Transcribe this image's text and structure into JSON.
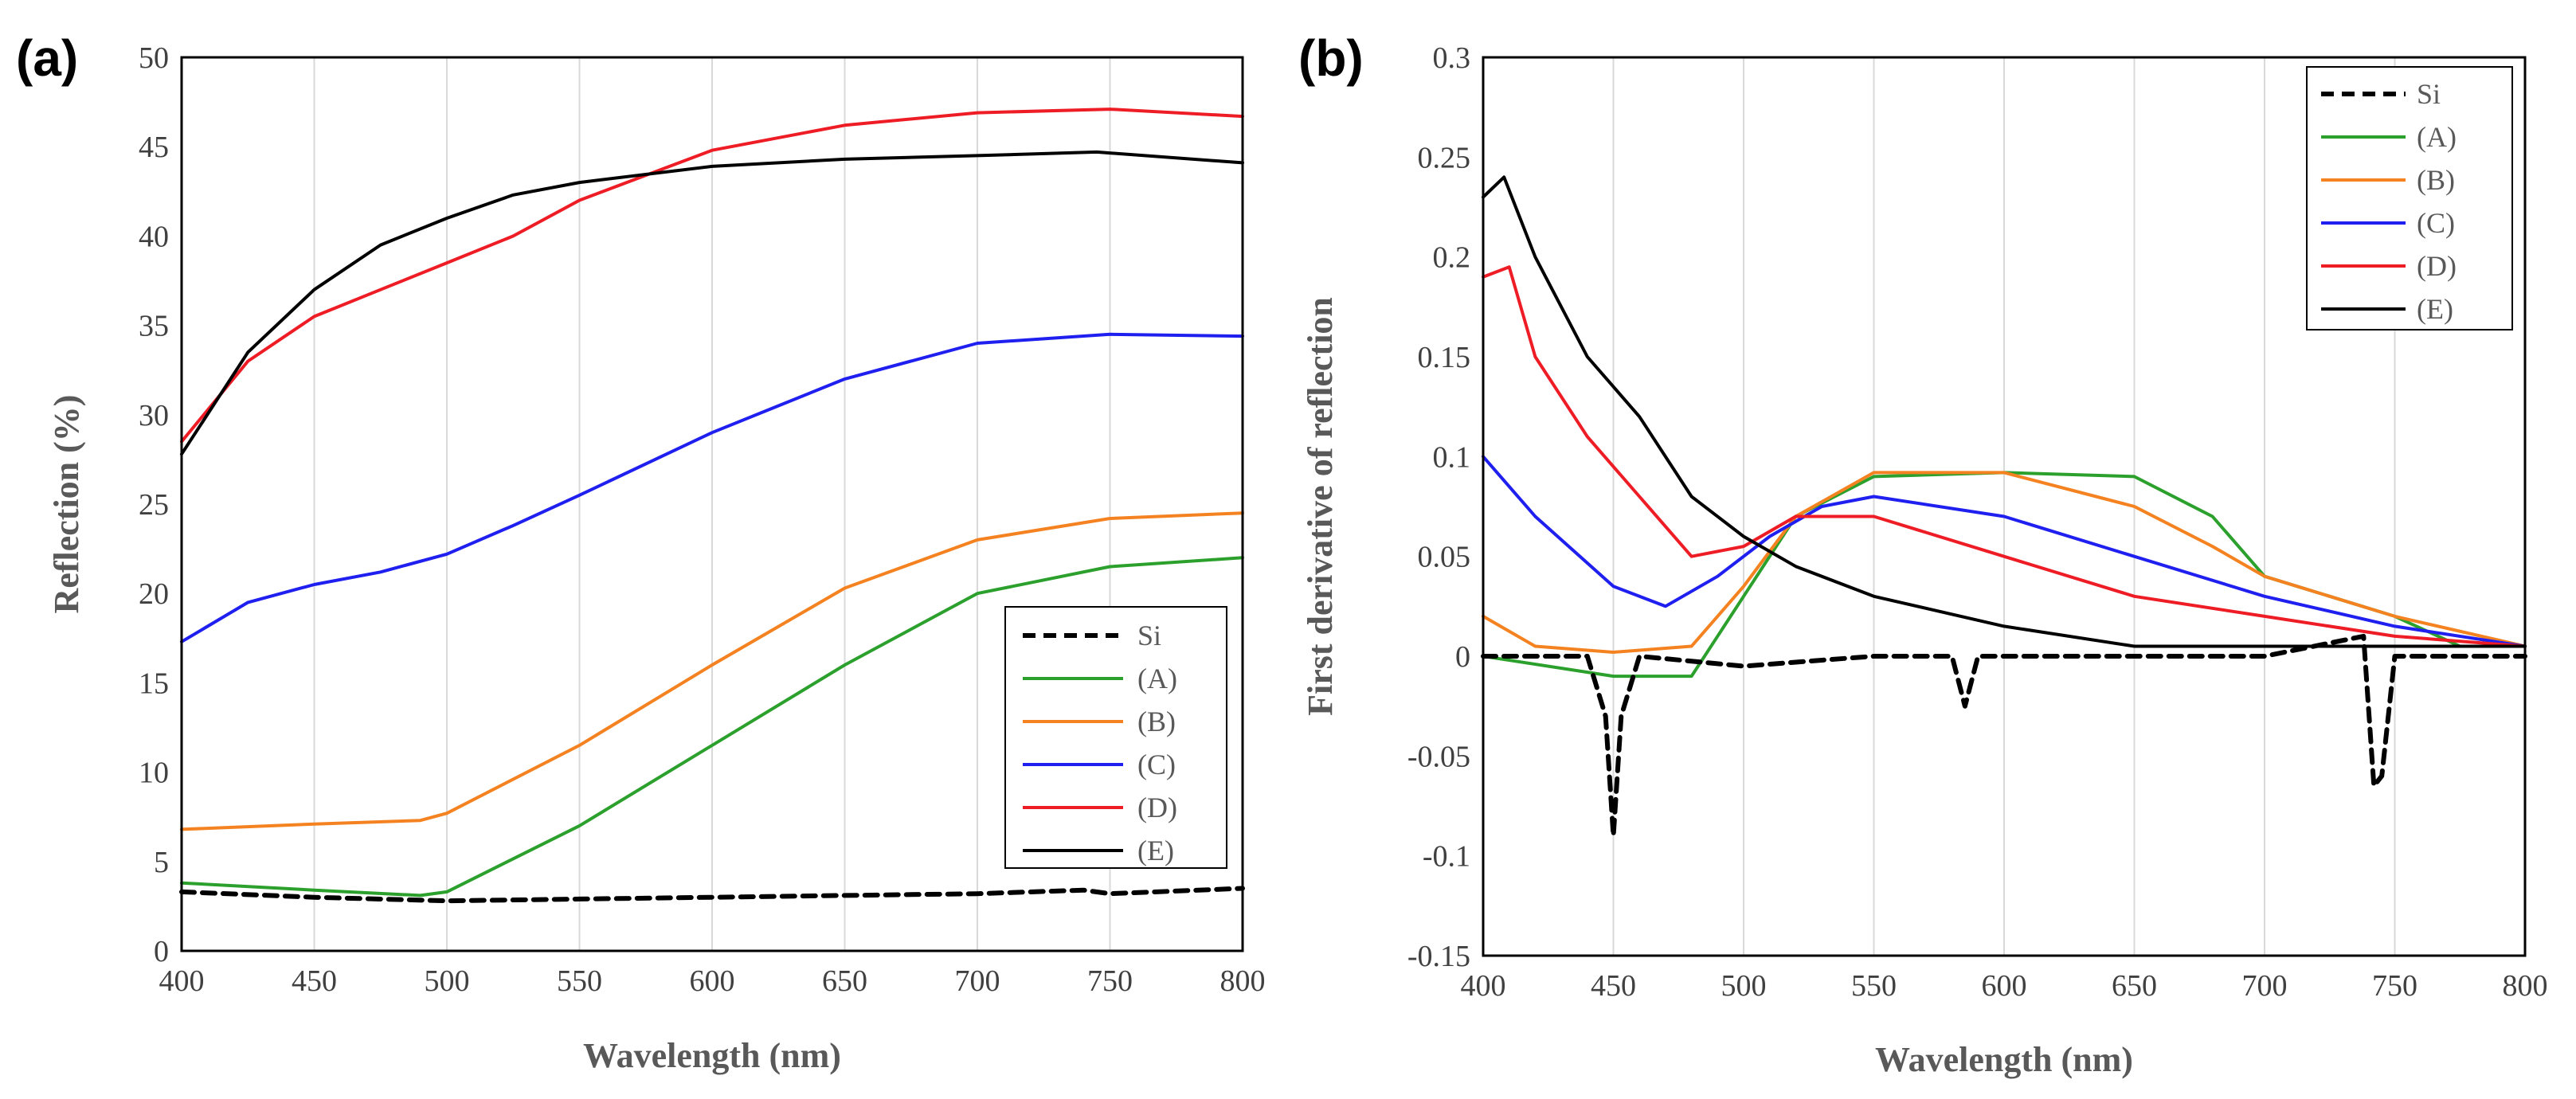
{
  "chart_data": [
    {
      "panel": "(a)",
      "type": "line",
      "xlabel": "Wavelength (nm)",
      "ylabel": "Reflection (%)",
      "xlim": [
        400,
        800
      ],
      "ylim": [
        0,
        50
      ],
      "xticks": [
        400,
        450,
        500,
        550,
        600,
        650,
        700,
        750,
        800
      ],
      "yticks": [
        0,
        5,
        10,
        15,
        20,
        25,
        30,
        35,
        40,
        45,
        50
      ],
      "grid": "vertical",
      "legend_position": "bottom-right",
      "series": [
        {
          "name": "Si",
          "color": "#000000",
          "dash": true,
          "x": [
            400,
            450,
            500,
            550,
            600,
            650,
            700,
            740,
            750,
            800
          ],
          "y": [
            3.3,
            3.0,
            2.8,
            2.9,
            3.0,
            3.1,
            3.2,
            3.4,
            3.2,
            3.5
          ]
        },
        {
          "name": "(A)",
          "color": "#2ca02c",
          "dash": false,
          "x": [
            400,
            450,
            490,
            500,
            550,
            600,
            650,
            700,
            750,
            800
          ],
          "y": [
            3.8,
            3.4,
            3.1,
            3.3,
            7.0,
            11.5,
            16.0,
            20.0,
            21.5,
            22.0
          ]
        },
        {
          "name": "(B)",
          "color": "#f58220",
          "dash": false,
          "x": [
            400,
            450,
            490,
            500,
            550,
            600,
            650,
            700,
            750,
            800
          ],
          "y": [
            6.8,
            7.1,
            7.3,
            7.7,
            11.5,
            16.0,
            20.3,
            23.0,
            24.2,
            24.5
          ]
        },
        {
          "name": "(C)",
          "color": "#1f1ff0",
          "dash": false,
          "x": [
            400,
            425,
            450,
            475,
            500,
            525,
            550,
            600,
            650,
            700,
            750,
            800
          ],
          "y": [
            17.3,
            19.5,
            20.5,
            21.2,
            22.2,
            23.8,
            25.5,
            29.0,
            32.0,
            34.0,
            34.5,
            34.4
          ]
        },
        {
          "name": "(D)",
          "color": "#ee1c25",
          "dash": false,
          "x": [
            400,
            425,
            450,
            475,
            500,
            525,
            550,
            600,
            650,
            700,
            750,
            800
          ],
          "y": [
            28.5,
            33.0,
            35.5,
            37.0,
            38.5,
            40.0,
            42.0,
            44.8,
            46.2,
            46.9,
            47.1,
            46.7
          ]
        },
        {
          "name": "(E)",
          "color": "#000000",
          "dash": false,
          "x": [
            400,
            425,
            450,
            475,
            500,
            525,
            550,
            600,
            650,
            700,
            745,
            800
          ],
          "y": [
            27.8,
            33.5,
            37.0,
            39.5,
            41.0,
            42.3,
            43.0,
            43.9,
            44.3,
            44.5,
            44.7,
            44.1
          ]
        }
      ]
    },
    {
      "panel": "(b)",
      "type": "line",
      "xlabel": "Wavelength (nm)",
      "ylabel": "First derivative of reflection",
      "xlim": [
        400,
        800
      ],
      "ylim": [
        -0.15,
        0.3
      ],
      "xticks": [
        400,
        450,
        500,
        550,
        600,
        650,
        700,
        750,
        800
      ],
      "yticks": [
        -0.15,
        -0.1,
        -0.05,
        0,
        0.05,
        0.1,
        0.15,
        0.2,
        0.25,
        0.3
      ],
      "grid": "vertical",
      "legend_position": "top-right",
      "series": [
        {
          "name": "Si",
          "color": "#000000",
          "dash": true,
          "x": [
            400,
            440,
            447,
            450,
            453,
            460,
            500,
            550,
            580,
            585,
            590,
            600,
            700,
            738,
            742,
            745,
            750,
            800
          ],
          "y": [
            0,
            0,
            -0.03,
            -0.09,
            -0.03,
            0,
            -0.005,
            0,
            0,
            -0.025,
            0,
            0,
            0,
            0.01,
            -0.065,
            -0.06,
            0,
            0
          ]
        },
        {
          "name": "(A)",
          "color": "#2ca02c",
          "dash": false,
          "x": [
            400,
            450,
            480,
            500,
            520,
            550,
            600,
            650,
            680,
            700,
            750,
            775,
            800
          ],
          "y": [
            0,
            -0.01,
            -0.01,
            0.03,
            0.07,
            0.09,
            0.092,
            0.09,
            0.07,
            0.04,
            0.02,
            0.005,
            0.005
          ]
        },
        {
          "name": "(B)",
          "color": "#f58220",
          "dash": false,
          "x": [
            400,
            420,
            450,
            480,
            500,
            520,
            550,
            600,
            650,
            680,
            700,
            750,
            800
          ],
          "y": [
            0.02,
            0.005,
            0.002,
            0.005,
            0.035,
            0.07,
            0.092,
            0.092,
            0.075,
            0.055,
            0.04,
            0.02,
            0.005
          ]
        },
        {
          "name": "(C)",
          "color": "#1f1ff0",
          "dash": false,
          "x": [
            400,
            420,
            450,
            470,
            490,
            510,
            530,
            550,
            600,
            650,
            700,
            750,
            800
          ],
          "y": [
            0.1,
            0.07,
            0.035,
            0.025,
            0.04,
            0.06,
            0.075,
            0.08,
            0.07,
            0.05,
            0.03,
            0.015,
            0.005
          ]
        },
        {
          "name": "(D)",
          "color": "#ee1c25",
          "dash": false,
          "x": [
            400,
            410,
            420,
            440,
            460,
            480,
            500,
            520,
            550,
            600,
            650,
            700,
            750,
            800
          ],
          "y": [
            0.19,
            0.195,
            0.15,
            0.11,
            0.08,
            0.05,
            0.055,
            0.07,
            0.07,
            0.05,
            0.03,
            0.02,
            0.01,
            0.005
          ]
        },
        {
          "name": "(E)",
          "color": "#000000",
          "dash": false,
          "x": [
            400,
            408,
            420,
            440,
            460,
            480,
            500,
            520,
            550,
            600,
            650,
            700,
            750,
            800
          ],
          "y": [
            0.23,
            0.24,
            0.2,
            0.15,
            0.12,
            0.08,
            0.06,
            0.045,
            0.03,
            0.015,
            0.005,
            0.005,
            0.005,
            0.005
          ]
        }
      ]
    }
  ]
}
